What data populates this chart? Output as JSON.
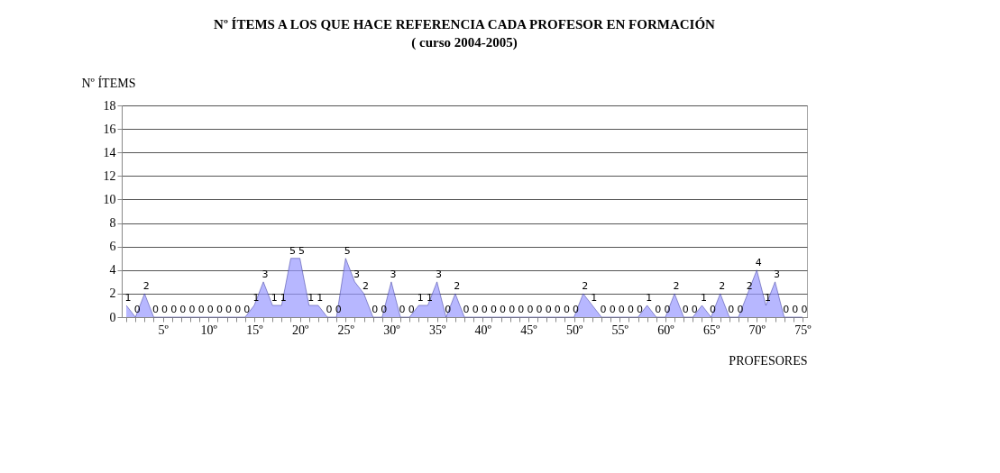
{
  "chart_data": {
    "type": "area",
    "title": "Nº ÍTEMS A LOS QUE HACE REFERENCIA CADA PROFESOR EN FORMACIÓN ( curso 2004-2005)",
    "ylabel": "Nº ÍTEMS",
    "xlabel": "PROFESORES",
    "categories": [
      null,
      null,
      null,
      null,
      "5º",
      null,
      null,
      null,
      null,
      "10º",
      null,
      null,
      null,
      null,
      "15º",
      null,
      null,
      null,
      null,
      "20º",
      null,
      null,
      null,
      null,
      "25º",
      null,
      null,
      null,
      null,
      "30º",
      null,
      null,
      null,
      null,
      "35º",
      null,
      null,
      null,
      null,
      "40º",
      null,
      null,
      null,
      null,
      "45º",
      null,
      null,
      null,
      null,
      "50º",
      null,
      null,
      null,
      null,
      "55º",
      null,
      null,
      null,
      null,
      "60º",
      null,
      null,
      null,
      null,
      "65º",
      null,
      null,
      null,
      null,
      "70º",
      null,
      null,
      null,
      null,
      "75º"
    ],
    "values": [
      1,
      0,
      2,
      0,
      0,
      0,
      0,
      0,
      0,
      0,
      0,
      0,
      0,
      0,
      1,
      3,
      1,
      1,
      5,
      5,
      1,
      1,
      0,
      0,
      5,
      3,
      2,
      0,
      0,
      3,
      0,
      0,
      1,
      1,
      3,
      0,
      2,
      0,
      0,
      0,
      0,
      0,
      0,
      0,
      0,
      0,
      0,
      0,
      0,
      0,
      2,
      1,
      0,
      0,
      0,
      0,
      0,
      1,
      0,
      0,
      2,
      0,
      0,
      1,
      0,
      2,
      0,
      0,
      2,
      4,
      1,
      3,
      0,
      0,
      0
    ],
    "color": "#9999ff",
    "ylim": [
      0,
      18
    ],
    "yticks": [
      0,
      2,
      4,
      6,
      8,
      10,
      12,
      14,
      16,
      18
    ],
    "grid": "y",
    "data_labels": true
  }
}
